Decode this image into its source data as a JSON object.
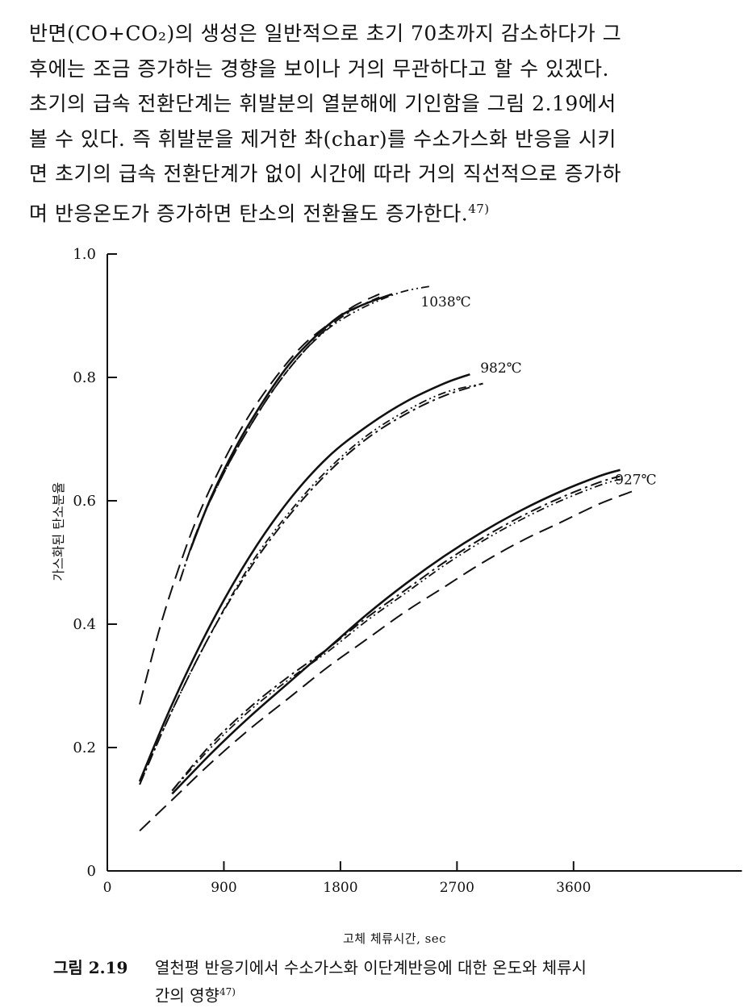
{
  "paragraph": {
    "lines": [
      "반면(CO+CO₂)의 생성은 일반적으로 초기 70초까지 감소하다가 그",
      "후에는 조금 증가하는 경향을 보이나 거의 무관하다고 할 수 있겠다.",
      "초기의 급속 전환단계는 휘발분의 열분해에 기인함을 그림 2.19에서",
      "볼 수 있다. 즉 휘발분을 제거한 촤(char)를 수소가스화 반응을 시키",
      "면 초기의 급속 전환단계가 없이 시간에 따라 거의 직선적으로 증가하",
      "며 반응온도가 증가하면 탄소의 전환율도 증가한다."
    ],
    "ref": "47)"
  },
  "chart_data": {
    "type": "line",
    "title": "",
    "xlabel": "고체 체류시간, sec",
    "ylabel": "가스화된 탄소분율",
    "xlim": [
      0,
      4900
    ],
    "ylim": [
      0,
      1.0
    ],
    "x_ticks": [
      0,
      900,
      1800,
      2700,
      3600
    ],
    "x_tick_labels": [
      "0",
      "900",
      "1800",
      "2700",
      "3600"
    ],
    "y_ticks": [
      0,
      0.2,
      0.4,
      0.6,
      0.8,
      1.0
    ],
    "y_tick_labels": [
      "0",
      "0.2",
      "0.4",
      "0.6",
      "0.8",
      "1.0"
    ],
    "grid": false,
    "annotations": [
      {
        "text": "1038℃",
        "x": 2420,
        "y": 0.915
      },
      {
        "text": "982℃",
        "x": 2880,
        "y": 0.808
      },
      {
        "text": "927℃",
        "x": 3920,
        "y": 0.627
      }
    ],
    "series": [
      {
        "group": "1038℃",
        "style": "solid",
        "x": [
          640,
          800,
          1000,
          1200,
          1400,
          1600,
          1800,
          2000,
          2200
        ],
        "y": [
          0.52,
          0.605,
          0.69,
          0.76,
          0.82,
          0.865,
          0.9,
          0.92,
          0.935
        ]
      },
      {
        "group": "1038℃",
        "style": "dashed",
        "x": [
          250,
          400,
          550,
          700,
          900,
          1100,
          1300,
          1500,
          1700,
          1900,
          2100
        ],
        "y": [
          0.27,
          0.39,
          0.49,
          0.575,
          0.665,
          0.74,
          0.8,
          0.85,
          0.885,
          0.915,
          0.935
        ]
      },
      {
        "group": "1038℃",
        "style": "dash-dot",
        "x": [
          560,
          700,
          900,
          1100,
          1300,
          1500,
          1700,
          1900,
          2100
        ],
        "y": [
          0.47,
          0.555,
          0.645,
          0.72,
          0.785,
          0.838,
          0.88,
          0.91,
          0.93
        ]
      },
      {
        "group": "1038℃",
        "style": "dash-dot-dot",
        "x": [
          560,
          700,
          900,
          1100,
          1300,
          1500,
          1700,
          1900,
          2100,
          2300,
          2500
        ],
        "y": [
          0.47,
          0.555,
          0.645,
          0.72,
          0.785,
          0.838,
          0.878,
          0.905,
          0.925,
          0.94,
          0.948
        ]
      },
      {
        "group": "982℃",
        "style": "solid",
        "x": [
          250,
          500,
          800,
          1100,
          1400,
          1700,
          2000,
          2300,
          2600,
          2800
        ],
        "y": [
          0.145,
          0.27,
          0.4,
          0.51,
          0.6,
          0.67,
          0.72,
          0.76,
          0.79,
          0.805
        ]
      },
      {
        "group": "982℃",
        "style": "dash-dot",
        "x": [
          250,
          500,
          800,
          1100,
          1400,
          1700,
          2000,
          2300,
          2600,
          2900
        ],
        "y": [
          0.14,
          0.26,
          0.385,
          0.49,
          0.575,
          0.645,
          0.7,
          0.74,
          0.77,
          0.79
        ]
      },
      {
        "group": "982℃",
        "style": "dash-dot-dot",
        "x": [
          250,
          500,
          800,
          1100,
          1400,
          1700,
          2000,
          2300,
          2600,
          2900
        ],
        "y": [
          0.14,
          0.26,
          0.385,
          0.495,
          0.58,
          0.65,
          0.705,
          0.745,
          0.775,
          0.79
        ]
      },
      {
        "group": "927℃",
        "style": "solid",
        "x": [
          500,
          800,
          1100,
          1400,
          1700,
          2000,
          2300,
          2600,
          2900,
          3200,
          3500,
          3800,
          3960
        ],
        "y": [
          0.125,
          0.19,
          0.25,
          0.305,
          0.36,
          0.415,
          0.465,
          0.51,
          0.55,
          0.585,
          0.615,
          0.64,
          0.65
        ]
      },
      {
        "group": "927℃",
        "style": "dash-dot",
        "x": [
          500,
          800,
          1100,
          1400,
          1700,
          2000,
          2300,
          2600,
          2900,
          3200,
          3500,
          3800,
          3960
        ],
        "y": [
          0.13,
          0.205,
          0.265,
          0.315,
          0.36,
          0.41,
          0.455,
          0.5,
          0.54,
          0.575,
          0.605,
          0.63,
          0.64
        ]
      },
      {
        "group": "927℃",
        "style": "dash-dot-dot",
        "x": [
          500,
          800,
          1100,
          1400,
          1700,
          2000,
          2300,
          2600,
          2900,
          3200,
          3500,
          3800,
          3960
        ],
        "y": [
          0.13,
          0.2,
          0.26,
          0.31,
          0.355,
          0.405,
          0.45,
          0.495,
          0.535,
          0.57,
          0.6,
          0.625,
          0.635
        ]
      },
      {
        "group": "927℃",
        "style": "dashed",
        "x": [
          250,
          500,
          800,
          1100,
          1400,
          1700,
          2000,
          2300,
          2600,
          2900,
          3200,
          3500,
          3800,
          4050
        ],
        "y": [
          0.065,
          0.115,
          0.175,
          0.23,
          0.28,
          0.33,
          0.375,
          0.42,
          0.46,
          0.5,
          0.535,
          0.565,
          0.595,
          0.615
        ]
      }
    ]
  },
  "figure": {
    "label": "그림 2.19",
    "caption_line1": "열천평 반응기에서 수소가스화 이단계반응에 대한 온도와 체류시",
    "caption_line2": "간의 영향",
    "ref": "47)"
  }
}
